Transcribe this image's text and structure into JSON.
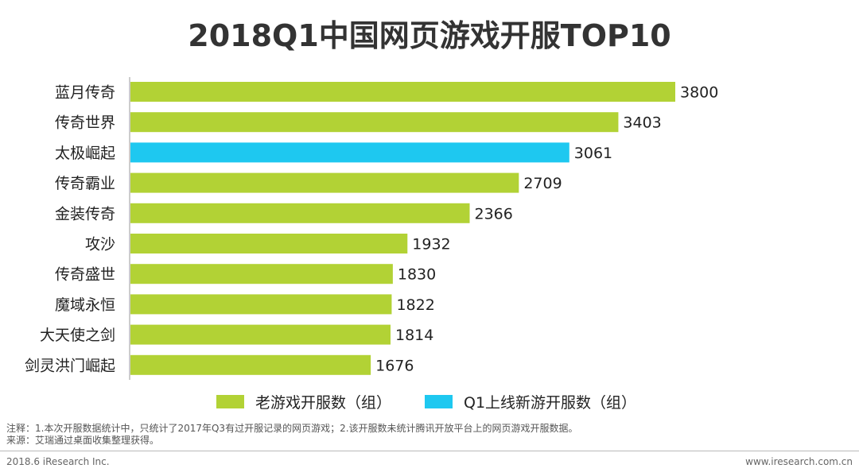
{
  "chart_data": {
    "type": "bar",
    "orientation": "horizontal",
    "title": "2018Q1中国网页游戏开服TOP10",
    "categories": [
      "蓝月传奇",
      "传奇世界",
      "太极崛起",
      "传奇霸业",
      "金装传奇",
      "攻沙",
      "传奇盛世",
      "魔域永恒",
      "大天使之剑",
      "剑灵洪门崛起"
    ],
    "values": [
      3800,
      3403,
      3061,
      2709,
      2366,
      1932,
      1830,
      1822,
      1814,
      1676
    ],
    "series_index": [
      0,
      0,
      1,
      0,
      0,
      0,
      0,
      0,
      0,
      0
    ],
    "series": [
      {
        "name": "老游戏开服数（组）",
        "color": "#b2d235"
      },
      {
        "name": "Q1上线新游开服数（组）",
        "color": "#1ec8f0"
      }
    ],
    "xlim": [
      0,
      3800
    ],
    "grid": false,
    "legend_position": "bottom"
  },
  "footnotes": {
    "note": "注释：1.本次开服数据统计中，只统计了2017年Q3有过开服记录的网页游戏；2.该开服数未统计腾讯开放平台上的网页游戏开服数据。",
    "source": "来源：艾瑞通过桌面收集整理获得。"
  },
  "footer": {
    "left": "2018.6 iResearch Inc.",
    "right": "www.iresearch.com.cn"
  }
}
